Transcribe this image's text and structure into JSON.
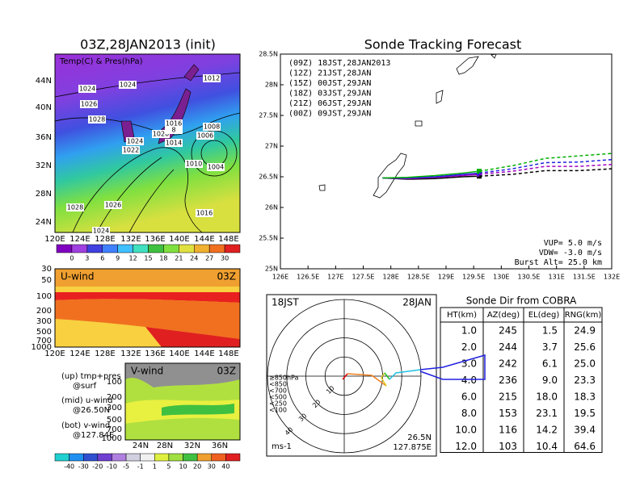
{
  "map": {
    "title": "03Z,28JAN2013 (init)",
    "label": "Temp(C) & Pres(hPa)",
    "lat_labels": [
      "44N",
      "40N",
      "36N",
      "32N",
      "28N",
      "24N"
    ],
    "lon_labels": [
      "120E",
      "124E",
      "128E",
      "132E",
      "136E",
      "140E",
      "144E",
      "148E"
    ],
    "pressure_labels": [
      1024,
      1024,
      1012,
      1026,
      1028,
      1016,
      1020,
      8,
      1008,
      1006,
      1024,
      1014,
      1022,
      1010,
      1004,
      1028,
      1026,
      1016,
      1024
    ],
    "colorbar": {
      "ticks": [
        0,
        3,
        6,
        9,
        12,
        15,
        18,
        21,
        24,
        27,
        30
      ],
      "colors": [
        "#8000c0",
        "#a040e0",
        "#4040e0",
        "#4080ff",
        "#40c0ff",
        "#40e0c0",
        "#40c040",
        "#80e040",
        "#e0e040",
        "#f0b030",
        "#f07020",
        "#e02020"
      ]
    }
  },
  "uwind": {
    "title": "U-wind",
    "time": "03Z",
    "levels": [
      30,
      50,
      100,
      200,
      300,
      500,
      700,
      1000
    ],
    "lon_labels": [
      "120E",
      "124E",
      "128E",
      "132E",
      "136E",
      "140E",
      "144E",
      "148E"
    ]
  },
  "vwind": {
    "title": "V-wind",
    "time": "03Z",
    "levels": [
      100,
      200,
      300,
      500,
      700,
      1000
    ],
    "lat_labels": [
      "24N",
      "28N",
      "32N",
      "36N"
    ],
    "colorbar": {
      "ticks": [
        -40,
        -30,
        -20,
        -10,
        -5,
        -1,
        1,
        5,
        10,
        20,
        30,
        40
      ],
      "colors": [
        "#20d0d0",
        "#2090f0",
        "#3050d0",
        "#7040d0",
        "#b080e0",
        "#d0d0e0",
        "#f0f0f0",
        "#e0f040",
        "#a0e040",
        "#40c040",
        "#f0a030",
        "#f06020",
        "#e02020"
      ]
    }
  },
  "notes": [
    "(up) tmp+pres",
    "@surf",
    "(mid) u-wind",
    "@26.50N",
    "(bot) v-wind",
    "@127.84E"
  ],
  "chart_data": {
    "type": "line",
    "title": "Sonde Tracking Forecast",
    "xlim": [
      126,
      132
    ],
    "ylim": [
      25,
      28.5
    ],
    "xticks": [
      {
        "value": 126,
        "label": "126E"
      },
      {
        "value": 126.5,
        "label": "126.5E"
      },
      {
        "value": 127,
        "label": "127E"
      },
      {
        "value": 127.5,
        "label": "127.5E"
      },
      {
        "value": 128,
        "label": "128E"
      },
      {
        "value": 128.5,
        "label": "128.5E"
      },
      {
        "value": 129,
        "label": "129E"
      },
      {
        "value": 129.5,
        "label": "129.5E"
      },
      {
        "value": 130,
        "label": "130E"
      },
      {
        "value": 130.5,
        "label": "130.5E"
      },
      {
        "value": 131,
        "label": "131E"
      },
      {
        "value": 131.5,
        "label": "131.5E"
      },
      {
        "value": 132,
        "label": "132E"
      }
    ],
    "yticks": [
      {
        "value": 25,
        "label": "25N"
      },
      {
        "value": 25.5,
        "label": "25.5N"
      },
      {
        "value": 26,
        "label": "26N"
      },
      {
        "value": 26.5,
        "label": "26.5N"
      },
      {
        "value": 27,
        "label": "27N"
      },
      {
        "value": 27.5,
        "label": "27.5N"
      },
      {
        "value": 28,
        "label": "28N"
      },
      {
        "value": 28.5,
        "label": "28.5N"
      }
    ],
    "legend": [
      {
        "text": "(09Z)  18JST,28JAN2013",
        "color": "#000000"
      },
      {
        "text": "(12Z)  21JST,28JAN",
        "color": "#a000c0"
      },
      {
        "text": "(15Z)  00JST,29JAN",
        "color": "#2020e0"
      },
      {
        "text": "(18Z)  03JST,29JAN",
        "color": "#00b000"
      },
      {
        "text": "(21Z)  06JST,29JAN",
        "color": "#e0e040"
      },
      {
        "text": "(00Z)  09JST,29JAN",
        "color": "#f08020"
      }
    ],
    "series": [
      {
        "color": "#000000",
        "x": [
          127.85,
          128.3,
          128.8,
          129.3,
          129.6
        ],
        "y": [
          26.48,
          26.46,
          26.47,
          26.5,
          26.51
        ]
      },
      {
        "color": "#a000c0",
        "x": [
          127.85,
          128.3,
          128.8,
          129.3,
          129.6
        ],
        "y": [
          26.48,
          26.47,
          26.49,
          26.52,
          26.54
        ]
      },
      {
        "color": "#2020e0",
        "x": [
          127.85,
          128.3,
          128.8,
          129.3,
          129.6
        ],
        "y": [
          26.48,
          26.48,
          26.5,
          26.54,
          26.56
        ]
      },
      {
        "color": "#00b000",
        "x": [
          127.85,
          128.3,
          128.8,
          129.3,
          129.6
        ],
        "y": [
          26.48,
          26.49,
          26.52,
          26.56,
          26.59
        ]
      }
    ],
    "forecast_series": [
      {
        "color": "#000000",
        "x": [
          129.6,
          130.2,
          130.8,
          131.4,
          132
        ],
        "y": [
          26.51,
          26.54,
          26.6,
          26.6,
          26.63
        ]
      },
      {
        "color": "#a000c0",
        "x": [
          129.6,
          130.2,
          130.8,
          131.4,
          132
        ],
        "y": [
          26.54,
          26.59,
          26.67,
          26.67,
          26.7
        ]
      },
      {
        "color": "#2020e0",
        "x": [
          129.6,
          130.2,
          130.8,
          131.4,
          132
        ],
        "y": [
          26.56,
          26.63,
          26.73,
          26.74,
          26.78
        ]
      },
      {
        "color": "#00b000",
        "x": [
          129.6,
          130.2,
          130.8,
          131.4,
          132
        ],
        "y": [
          26.59,
          26.68,
          26.8,
          26.84,
          26.88
        ]
      }
    ],
    "annotations": [
      "VUP=  5.0 m/s",
      "VDW= -3.0 m/s",
      "Burst Alt= 25.0 km"
    ]
  },
  "hodograph": {
    "time": "18JST",
    "date": "28JAN",
    "lat": "26.5N",
    "lon": "127.875E",
    "unit": "ms-1",
    "rings": [
      10,
      20,
      30,
      40
    ],
    "legend": [
      {
        "label": "≥850hPa",
        "color": "#e00000"
      },
      {
        "label": "<850",
        "color": "#f08020"
      },
      {
        "label": "<700",
        "color": "#e0d020"
      },
      {
        "label": "<500",
        "color": "#20c020"
      },
      {
        "label": "<250",
        "color": "#20c0e0"
      },
      {
        "label": "<100",
        "color": "#2020e0"
      }
    ]
  },
  "table": {
    "title": "Sonde Dir from COBRA",
    "header": [
      "HT(km)",
      "AZ(deg)",
      "EL(deg)",
      "RNG(km)"
    ],
    "rows": [
      [
        "1.0",
        "245",
        "1.5",
        "24.9"
      ],
      [
        "2.0",
        "244",
        "3.7",
        "25.6"
      ],
      [
        "3.0",
        "242",
        "6.1",
        "25.0"
      ],
      [
        "4.0",
        "236",
        "9.0",
        "23.3"
      ],
      [
        "6.0",
        "215",
        "18.0",
        "18.3"
      ],
      [
        "8.0",
        "153",
        "23.1",
        "19.5"
      ],
      [
        "10.0",
        "116",
        "14.2",
        "39.4"
      ],
      [
        "12.0",
        "103",
        "10.4",
        "64.6"
      ]
    ]
  }
}
